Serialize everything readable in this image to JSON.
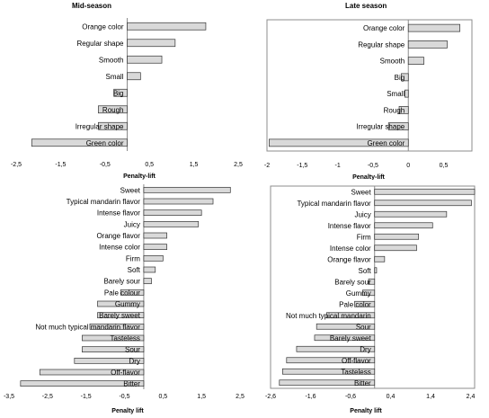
{
  "chart_data": [
    {
      "type": "bar",
      "orientation": "horizontal",
      "title": "Mid-season",
      "xlabel": "Penalty-lift",
      "xlim": [
        -2.5,
        2.5
      ],
      "ticks": [
        -2.5,
        -1.5,
        -0.5,
        0.5,
        1.5,
        2.5
      ],
      "tick_labels": [
        "-2,5",
        "-1,5",
        "-0,5",
        "0,5",
        "1,5",
        "2,5"
      ],
      "framed": false,
      "categories": [
        "Orange color",
        "Regular shape",
        "Smooth",
        "Small",
        "Big",
        "Rough",
        "Irregular shape",
        "Green color"
      ],
      "values": [
        1.77,
        1.08,
        0.78,
        0.3,
        -0.3,
        -0.65,
        -0.65,
        -2.15
      ]
    },
    {
      "type": "bar",
      "orientation": "horizontal",
      "title": "Late season",
      "xlabel": "Penalty-lift",
      "xlim": [
        -2,
        0.9
      ],
      "ticks": [
        -2,
        -1.5,
        -1,
        -0.5,
        0,
        0.5
      ],
      "tick_labels": [
        "-2",
        "-1,5",
        "-1",
        "-0,5",
        "0",
        "0,5"
      ],
      "framed": true,
      "categories": [
        "Orange color",
        "Regular shape",
        "Smooth",
        "Big",
        "Small",
        "Rough",
        "Irregular shape",
        "Green color"
      ],
      "values": [
        0.73,
        0.55,
        0.22,
        -0.1,
        -0.05,
        -0.13,
        -0.28,
        -1.97
      ]
    },
    {
      "type": "bar",
      "orientation": "horizontal",
      "title": "",
      "xlabel": "Penalty lift",
      "xlim": [
        -3.5,
        2.5
      ],
      "ticks": [
        -3.5,
        -2.5,
        -1.5,
        -0.5,
        0.5,
        1.5,
        2.5
      ],
      "tick_labels": [
        "-3,5",
        "-2,5",
        "-1,5",
        "-0,5",
        "0,5",
        "1,5",
        "2,5"
      ],
      "framed": false,
      "categories": [
        "Sweet",
        "Typical mandarin flavor",
        "Intense flavor",
        "Juicy",
        "Orange flavor",
        "Intense color",
        "Firm",
        "Soft",
        "Barely sour",
        "Pale colour",
        "Gummy",
        "Barely sweet",
        "Not much typical mandarin flavor",
        "Tasteless",
        "Sour",
        "Dry",
        "Off-flavor",
        "Bitter"
      ],
      "values": [
        2.25,
        1.8,
        1.5,
        1.42,
        0.6,
        0.6,
        0.5,
        0.3,
        0.2,
        -0.6,
        -1.2,
        -1.2,
        -1.4,
        -1.6,
        -1.6,
        -1.8,
        -2.7,
        -3.2
      ]
    },
    {
      "type": "bar",
      "orientation": "horizontal",
      "title": "",
      "xlabel": "Penalty lift",
      "xlim": [
        -2.6,
        2.5
      ],
      "ticks": [
        -2.6,
        -1.6,
        -0.6,
        0.4,
        1.4,
        2.4
      ],
      "tick_labels": [
        "-2,6",
        "-1,6",
        "-0,6",
        "0,4",
        "1,4",
        "2,4"
      ],
      "framed": true,
      "categories": [
        "Sweet",
        "Typical mandarin flavor",
        "Juicy",
        "Intense flavor",
        "Firm",
        "Intense color",
        "Orange flavor",
        "Soft",
        "Barely sour",
        "Gummy",
        "Pale color",
        "Not much typical mandarin",
        "Sour",
        "Barely sweet",
        "Dry",
        "Off-flavor",
        "Tasteless",
        "Bitter"
      ],
      "values": [
        2.5,
        2.42,
        1.8,
        1.45,
        1.1,
        1.05,
        0.25,
        0.05,
        -0.15,
        -0.3,
        -0.5,
        -1.2,
        -1.45,
        -1.5,
        -1.95,
        -2.2,
        -2.3,
        -2.38
      ]
    }
  ]
}
